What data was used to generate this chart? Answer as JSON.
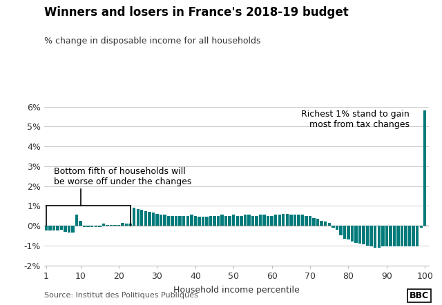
{
  "title": "Winners and losers in France's 2018-19 budget",
  "subtitle": "% change in disposable income for all households",
  "xlabel": "Household income percentile",
  "source": "Source: Institut des Politiques Publiques",
  "bar_color": "#007a7a",
  "background_color": "#ffffff",
  "ylim": [
    -2.0,
    6.0
  ],
  "xlim": [
    0.5,
    101
  ],
  "yticks": [
    -2,
    -1,
    0,
    1,
    2,
    3,
    4,
    5,
    6
  ],
  "xticks": [
    1,
    10,
    20,
    30,
    40,
    50,
    60,
    70,
    80,
    90,
    100
  ],
  "annotation_left_text": "Bottom fifth of households will\nbe worse off under the changes",
  "annotation_right_text": "Richest 1% stand to gain\nmost from tax changes",
  "values": [
    -0.25,
    -0.25,
    -0.25,
    -0.25,
    -0.2,
    -0.3,
    -0.35,
    -0.35,
    0.55,
    0.25,
    -0.05,
    -0.05,
    -0.05,
    -0.05,
    -0.05,
    0.1,
    0.05,
    0.05,
    0.05,
    0.05,
    0.15,
    0.1,
    0.1,
    0.9,
    0.85,
    0.8,
    0.75,
    0.7,
    0.65,
    0.6,
    0.55,
    0.55,
    0.5,
    0.5,
    0.5,
    0.5,
    0.5,
    0.5,
    0.55,
    0.5,
    0.45,
    0.45,
    0.45,
    0.5,
    0.5,
    0.5,
    0.55,
    0.5,
    0.5,
    0.55,
    0.5,
    0.5,
    0.55,
    0.55,
    0.5,
    0.5,
    0.55,
    0.55,
    0.5,
    0.5,
    0.55,
    0.55,
    0.6,
    0.6,
    0.55,
    0.55,
    0.55,
    0.55,
    0.5,
    0.5,
    0.4,
    0.35,
    0.25,
    0.2,
    0.15,
    -0.1,
    -0.2,
    -0.5,
    -0.65,
    -0.7,
    -0.8,
    -0.85,
    -0.9,
    -0.95,
    -1.0,
    -1.05,
    -1.1,
    -1.1,
    -1.05,
    -1.05,
    -1.05,
    -1.05,
    -1.05,
    -1.05,
    -1.05,
    -1.05,
    -1.05,
    -1.05,
    -0.1,
    5.8
  ]
}
